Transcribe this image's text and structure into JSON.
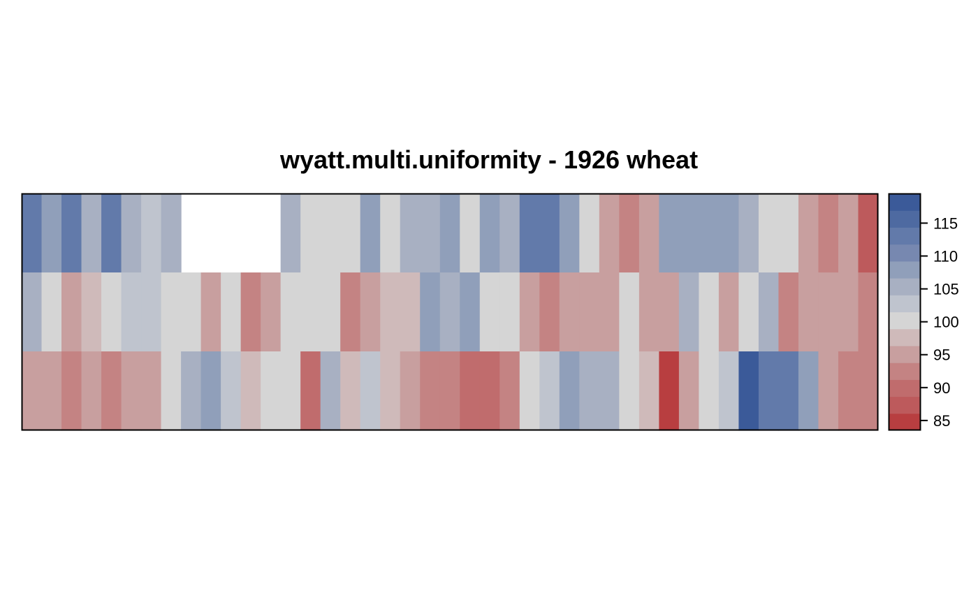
{
  "chart_data": {
    "type": "heatmap",
    "title": "wyatt.multi.uniformity - 1926 wheat",
    "xlabel": "",
    "ylabel": "",
    "grid": false,
    "legend": "right",
    "ncols": 43,
    "nrows": 3,
    "rows": [
      [
        112,
        108,
        112,
        106,
        112,
        106,
        104,
        106,
        null,
        null,
        null,
        null,
        null,
        106,
        101,
        101,
        101,
        108,
        101,
        106,
        106,
        108,
        101,
        108,
        106,
        112,
        114,
        108,
        101,
        96,
        92,
        96,
        108,
        108,
        108,
        108,
        106,
        101,
        101,
        96,
        92,
        96,
        88
      ],
      [
        106,
        101,
        96,
        98,
        101,
        104,
        104,
        101,
        101,
        96,
        101,
        92,
        96,
        101,
        101,
        101,
        92,
        96,
        98,
        98,
        108,
        106,
        108,
        101,
        101,
        96,
        92,
        96,
        96,
        96,
        101,
        96,
        96,
        106,
        101,
        96,
        101,
        106,
        92,
        96,
        96,
        96,
        92
      ],
      [
        96,
        96,
        92,
        96,
        92,
        96,
        96,
        101,
        106,
        108,
        104,
        98,
        101,
        101,
        90,
        106,
        98,
        104,
        98,
        96,
        92,
        92,
        90,
        90,
        92,
        101,
        104,
        108,
        106,
        106,
        101,
        98,
        86,
        96,
        101,
        104,
        119,
        114,
        112,
        108,
        96,
        92,
        92
      ]
    ],
    "colorbar": {
      "ticks": [
        85,
        90,
        95,
        100,
        105,
        110,
        115
      ],
      "range": [
        83.5,
        119.5
      ],
      "colors": [
        "#b83e40",
        "#bd5a5c",
        "#c06c6d",
        "#c48383",
        "#c89f9f",
        "#cfbaba",
        "#d5d5d5",
        "#bfc4ce",
        "#a8b0c2",
        "#909fba",
        "#7788b0",
        "#627aaa",
        "#4e6aa1",
        "#3b5a99"
      ]
    }
  }
}
